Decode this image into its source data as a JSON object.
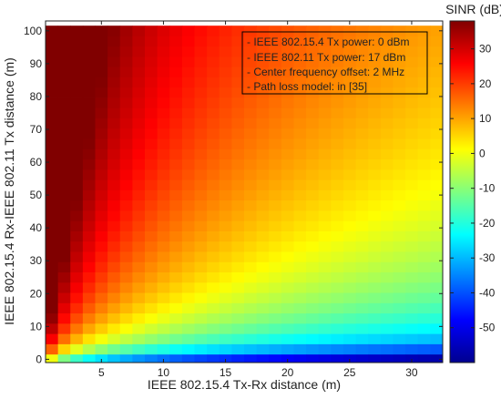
{
  "chart_data": {
    "type": "heatmap",
    "title": "",
    "xlabel": "IEEE 802.15.4 Tx-Rx distance (m)",
    "ylabel": "IEEE 802.15.4 Rx-IEEE 802.11 Tx distance (m)",
    "colorbar_label": "SINR (dB)",
    "colormap": "jet",
    "xlim": [
      0.5,
      32.5
    ],
    "ylim": [
      -1,
      103
    ],
    "x_ticks": [
      5,
      10,
      15,
      20,
      25,
      30
    ],
    "y_ticks": [
      0,
      10,
      20,
      30,
      40,
      50,
      60,
      70,
      80,
      90,
      100
    ],
    "x_cells": [
      1,
      32
    ],
    "y_cell_step": 3.125,
    "clim": [
      -60,
      38
    ],
    "colorbar_ticks": [
      30,
      20,
      10,
      0,
      -10,
      -20,
      -30,
      -40,
      -50
    ],
    "grid": false,
    "annotation_box": {
      "position": "top-right",
      "lines": [
        "- IEEE 802.15.4 Tx power: 0 dBm",
        "- IEEE 802.11 Tx power: 17 dBm",
        "- Center frequency offset: 2 MHz",
        "- Path loss model: in [35]"
      ]
    }
  }
}
